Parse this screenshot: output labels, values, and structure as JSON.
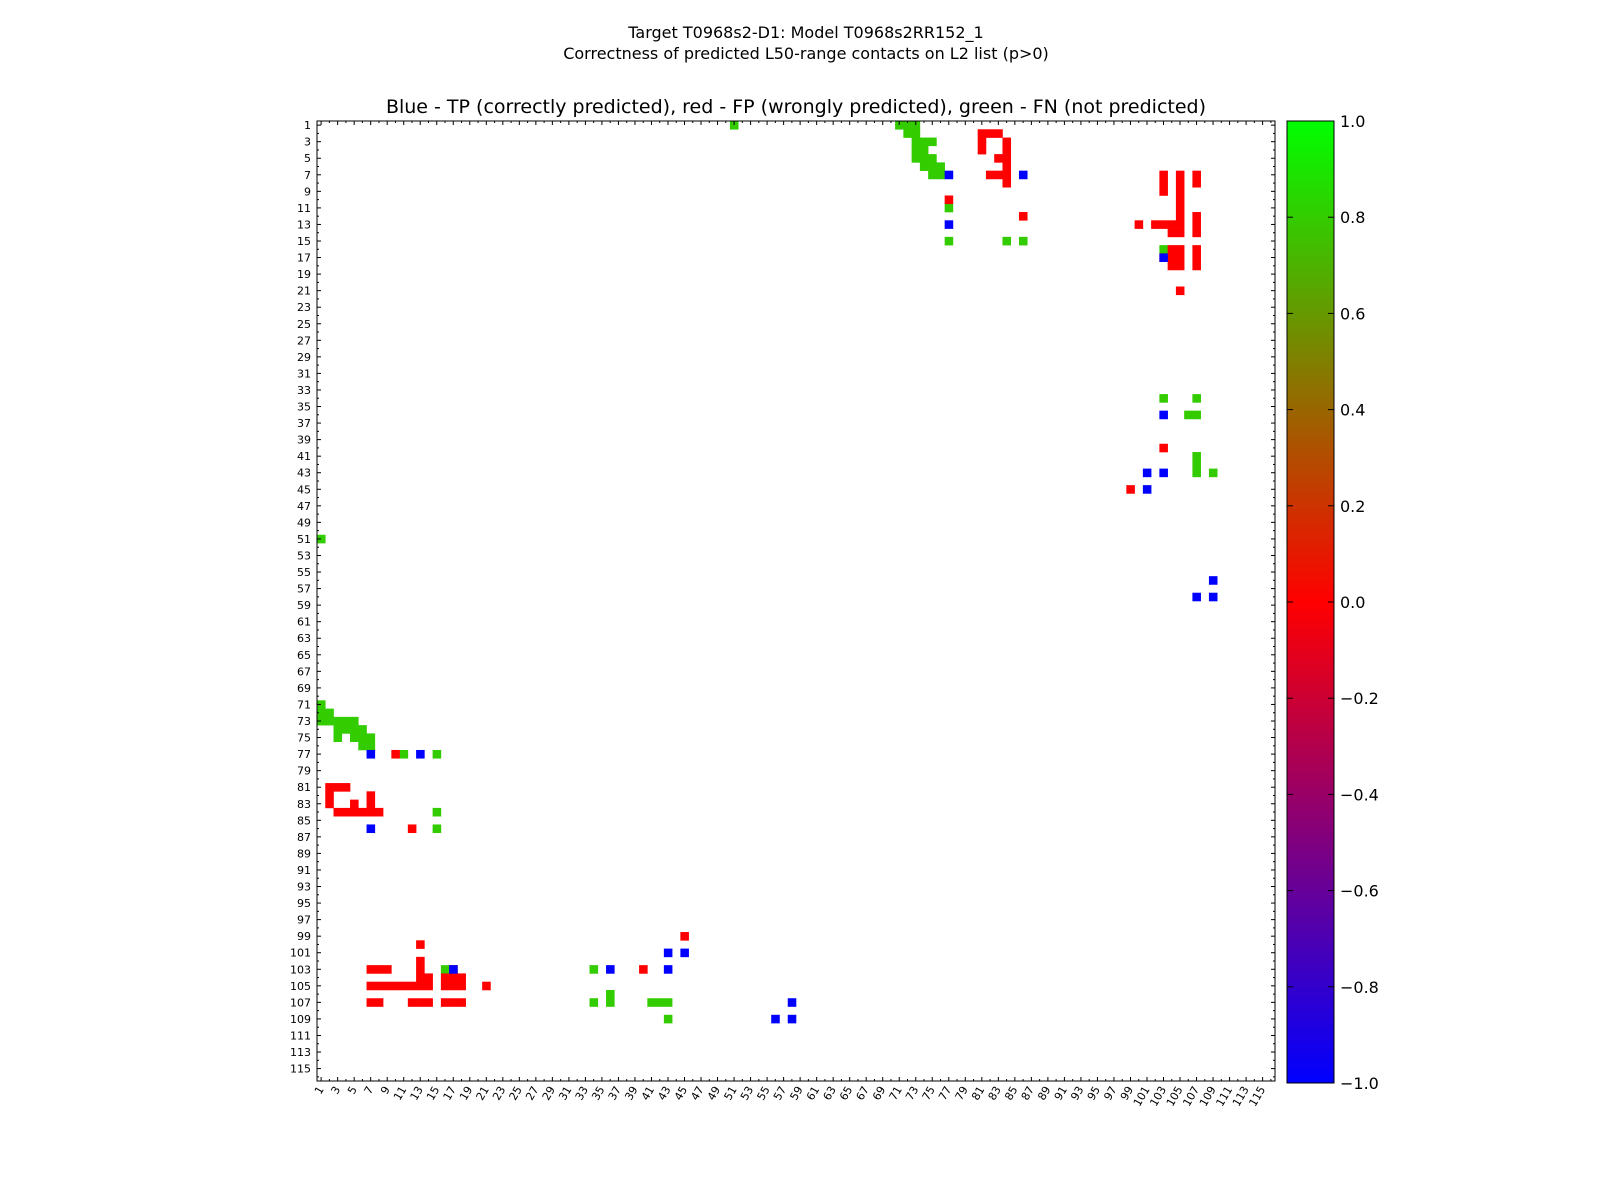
{
  "chart_data": {
    "type": "heatmap",
    "suptitle_line1": "Target T0968s2-D1: Model T0968s2RR152_1",
    "suptitle_line2": "Correctness of predicted L50-range contacts on L2 list (p>0)",
    "title": "Blue - TP (correctly predicted), red - FP (wrongly predicted), green - FN (not predicted)",
    "xlabel": "",
    "ylabel": "",
    "axis_range": [
      1,
      116
    ],
    "x_tick_labels": [
      "1",
      "3",
      "5",
      "7",
      "9",
      "11",
      "13",
      "15",
      "17",
      "19",
      "21",
      "23",
      "25",
      "27",
      "29",
      "31",
      "33",
      "35",
      "37",
      "39",
      "41",
      "43",
      "45",
      "47",
      "49",
      "51",
      "53",
      "55",
      "57",
      "59",
      "61",
      "63",
      "65",
      "67",
      "69",
      "71",
      "73",
      "75",
      "77",
      "79",
      "81",
      "83",
      "85",
      "87",
      "89",
      "91",
      "93",
      "95",
      "97",
      "99",
      "101",
      "103",
      "105",
      "107",
      "109",
      "111",
      "113",
      "115"
    ],
    "y_tick_labels": [
      "1",
      "3",
      "5",
      "7",
      "9",
      "11",
      "13",
      "15",
      "17",
      "19",
      "21",
      "23",
      "25",
      "27",
      "29",
      "31",
      "33",
      "35",
      "37",
      "39",
      "41",
      "43",
      "45",
      "47",
      "49",
      "51",
      "53",
      "55",
      "57",
      "59",
      "61",
      "63",
      "65",
      "67",
      "69",
      "71",
      "73",
      "75",
      "77",
      "79",
      "81",
      "83",
      "85",
      "87",
      "89",
      "91",
      "93",
      "95",
      "97",
      "99",
      "101",
      "103",
      "105",
      "107",
      "109",
      "111",
      "113",
      "115"
    ],
    "colorbar": {
      "range": [
        -1.0,
        1.0
      ],
      "tick_labels": [
        "1.0",
        "0.8",
        "0.6",
        "0.4",
        "0.2",
        "0.0",
        "−0.2",
        "−0.4",
        "−0.6",
        "−0.8",
        "−1.0"
      ],
      "stops": [
        {
          "value": -1.0,
          "color": "#0000ff"
        },
        {
          "value": 0.0,
          "color": "#ff0000"
        },
        {
          "value": 1.0,
          "color": "#00ff00"
        }
      ]
    },
    "categories": {
      "TP": {
        "label": "TP (correctly predicted)",
        "value": -1.0,
        "color": "#0000ff"
      },
      "FP": {
        "label": "FP (wrongly predicted)",
        "value": 0.0,
        "color": "#ff0000"
      },
      "FN": {
        "label": "FN (not predicted)",
        "value": 0.8,
        "color": "#33cc00"
      }
    },
    "cells_upper": {
      "FN": [
        [
          1,
          51
        ],
        [
          1,
          71
        ],
        [
          1,
          72
        ],
        [
          1,
          73
        ],
        [
          2,
          73
        ],
        [
          2,
          72
        ],
        [
          3,
          73
        ],
        [
          3,
          74
        ],
        [
          3,
          75
        ],
        [
          4,
          73
        ],
        [
          4,
          74
        ],
        [
          5,
          73
        ],
        [
          5,
          74
        ],
        [
          5,
          75
        ],
        [
          6,
          74
        ],
        [
          6,
          75
        ],
        [
          6,
          76
        ],
        [
          7,
          75
        ],
        [
          7,
          76
        ],
        [
          11,
          77
        ],
        [
          15,
          77
        ],
        [
          15,
          84
        ],
        [
          15,
          86
        ],
        [
          16,
          103
        ],
        [
          34,
          103
        ],
        [
          34,
          107
        ],
        [
          36,
          106
        ],
        [
          36,
          107
        ],
        [
          41,
          107
        ],
        [
          42,
          107
        ],
        [
          43,
          107
        ],
        [
          43,
          109
        ]
      ],
      "FP": [
        [
          2,
          81
        ],
        [
          2,
          82
        ],
        [
          2,
          83
        ],
        [
          3,
          81
        ],
        [
          3,
          84
        ],
        [
          4,
          81
        ],
        [
          4,
          84
        ],
        [
          5,
          83
        ],
        [
          5,
          84
        ],
        [
          6,
          84
        ],
        [
          7,
          82
        ],
        [
          7,
          83
        ],
        [
          7,
          84
        ],
        [
          8,
          84
        ],
        [
          7,
          103
        ],
        [
          8,
          103
        ],
        [
          9,
          103
        ],
        [
          7,
          105
        ],
        [
          8,
          105
        ],
        [
          9,
          105
        ],
        [
          7,
          107
        ],
        [
          8,
          107
        ],
        [
          10,
          77
        ],
        [
          12,
          86
        ],
        [
          13,
          100
        ],
        [
          13,
          102
        ],
        [
          13,
          103
        ],
        [
          13,
          104
        ],
        [
          13,
          105
        ],
        [
          14,
          104
        ],
        [
          14,
          105
        ],
        [
          12,
          105
        ],
        [
          11,
          105
        ],
        [
          10,
          105
        ],
        [
          13,
          107
        ],
        [
          14,
          107
        ],
        [
          12,
          107
        ],
        [
          17,
          103
        ],
        [
          17,
          104
        ],
        [
          17,
          105
        ],
        [
          16,
          104
        ],
        [
          16,
          105
        ],
        [
          18,
          104
        ],
        [
          18,
          105
        ],
        [
          17,
          107
        ],
        [
          18,
          107
        ],
        [
          16,
          107
        ],
        [
          21,
          105
        ],
        [
          40,
          103
        ],
        [
          45,
          99
        ]
      ],
      "TP": [
        [
          7,
          77
        ],
        [
          7,
          86
        ],
        [
          13,
          77
        ],
        [
          17,
          103
        ],
        [
          36,
          103
        ],
        [
          43,
          101
        ],
        [
          43,
          103
        ],
        [
          45,
          101
        ],
        [
          56,
          109
        ],
        [
          58,
          107
        ],
        [
          58,
          109
        ]
      ]
    }
  }
}
